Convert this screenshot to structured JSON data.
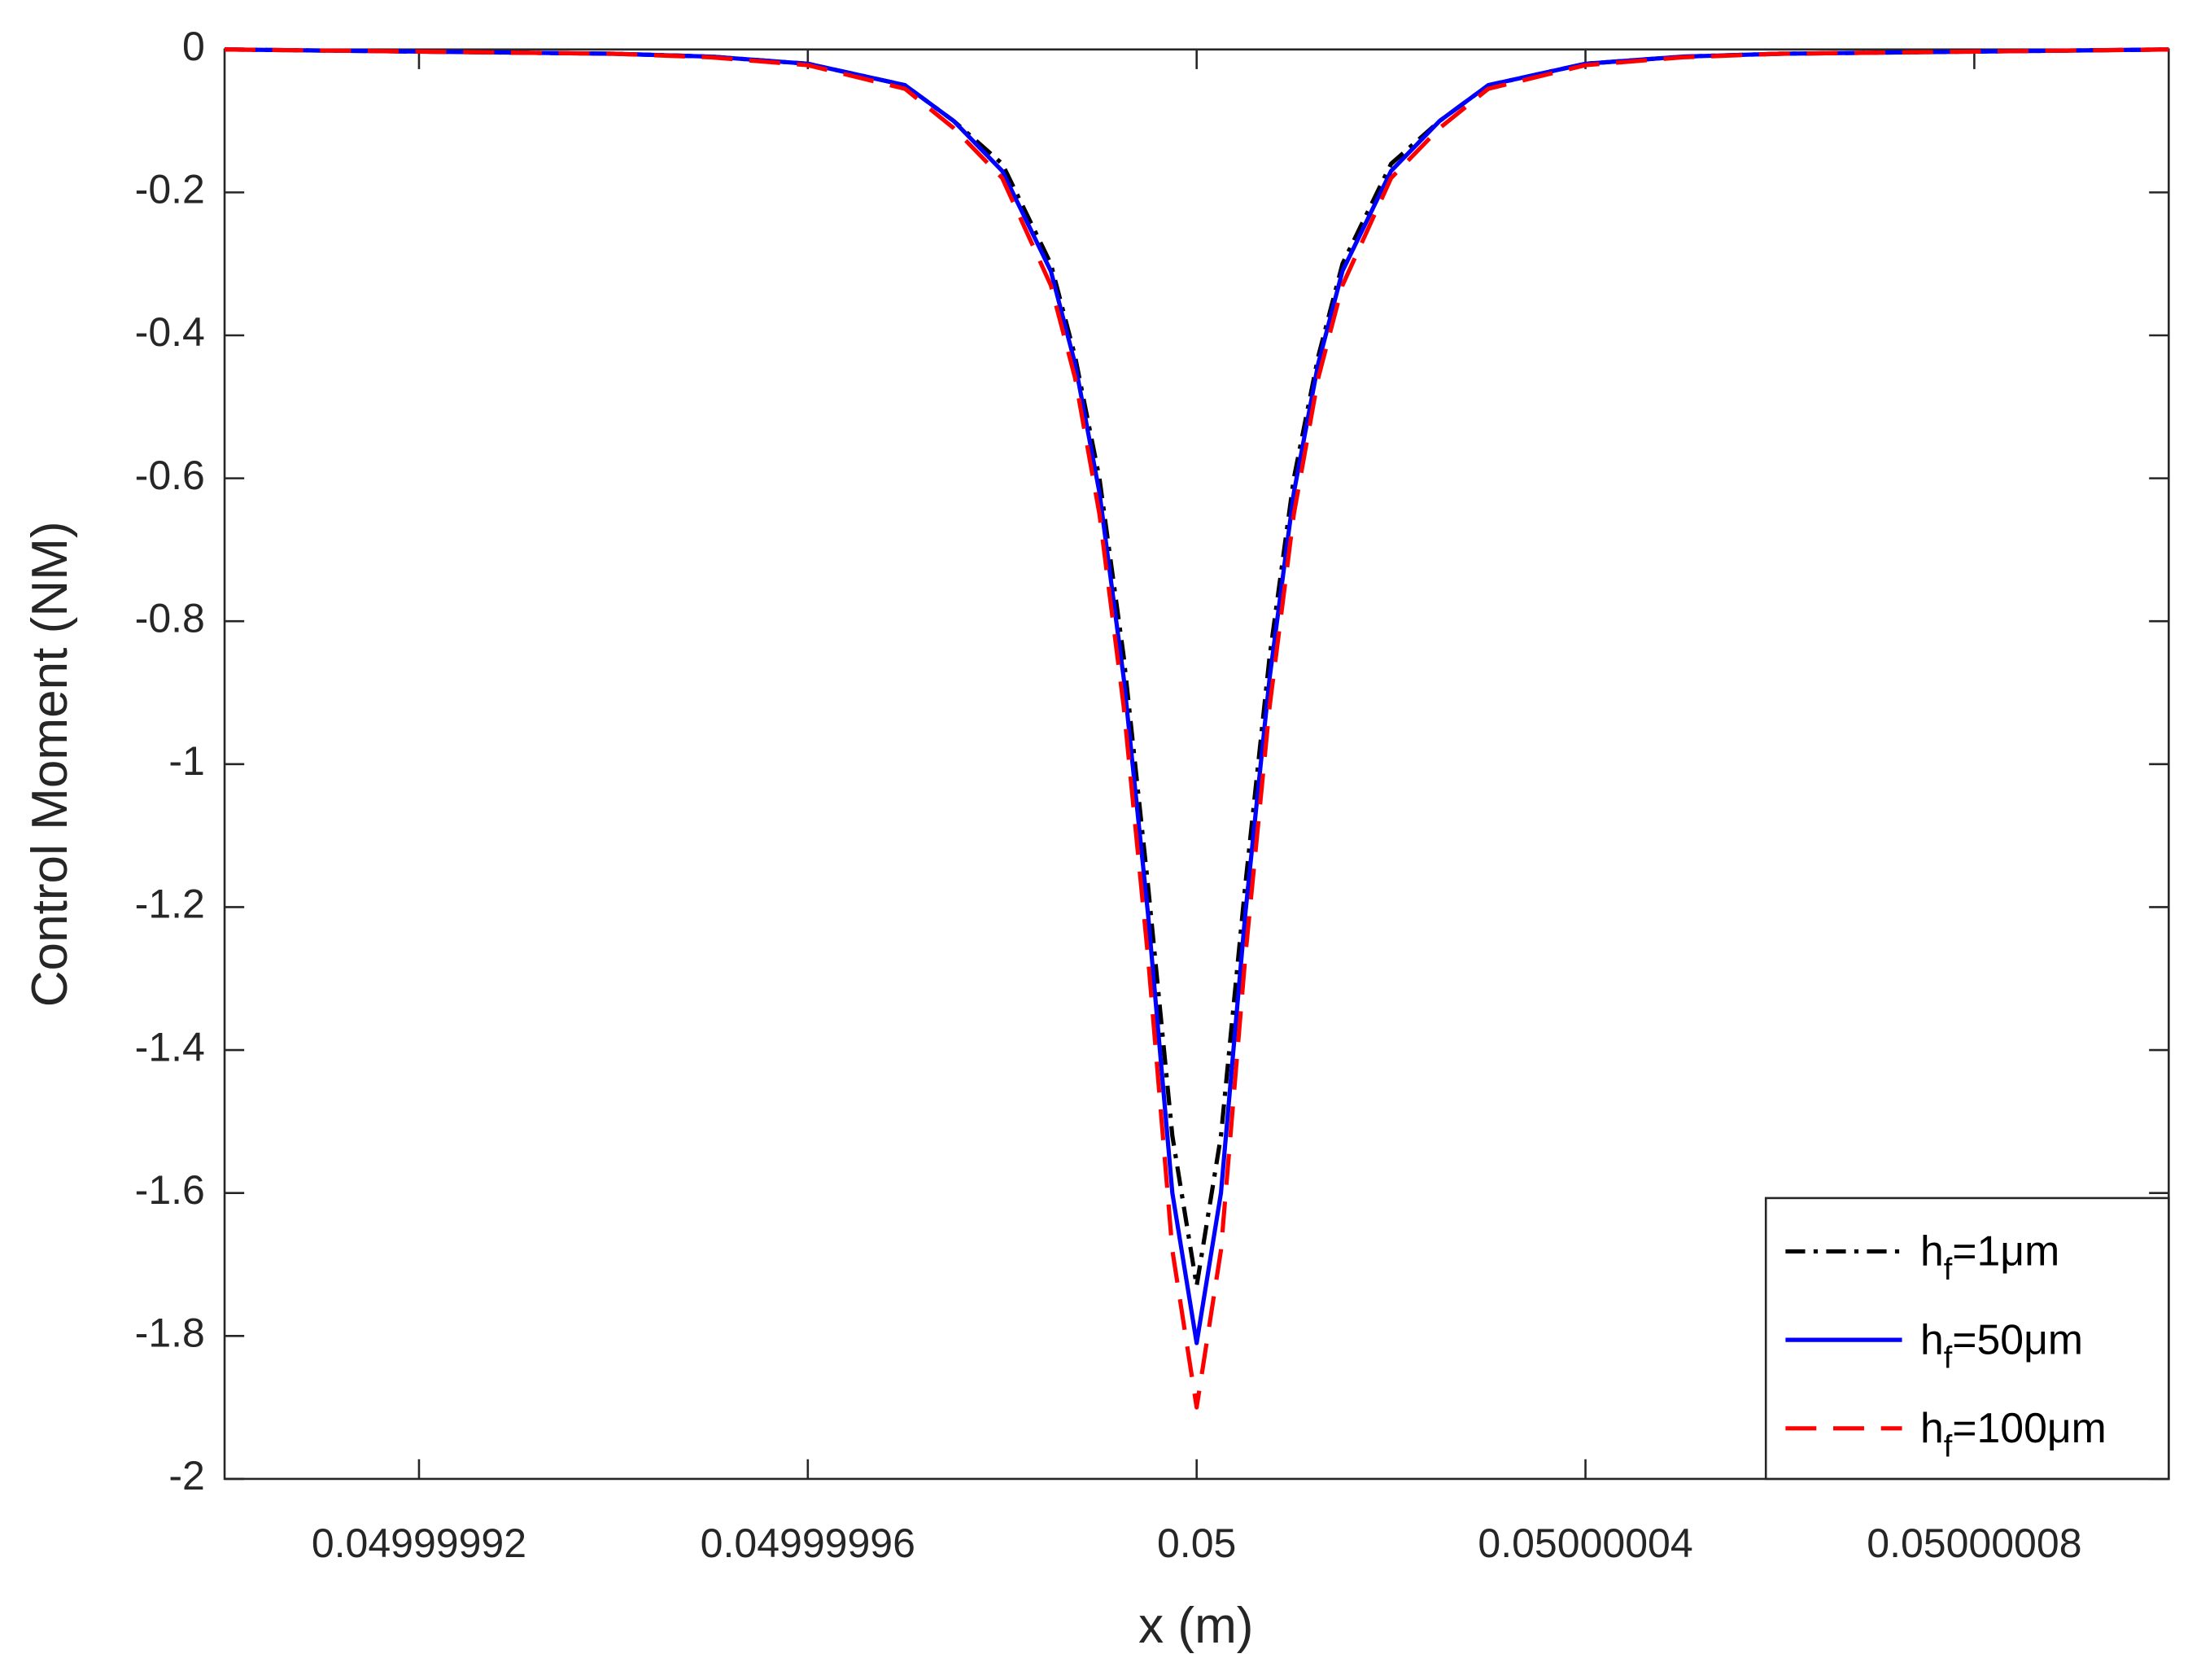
{
  "chart_data": {
    "type": "line",
    "xlabel": "x (m)",
    "ylabel": "Control Moment (NM)",
    "x": [
      0.0499999,
      0.04999992,
      0.04999994,
      0.04999995,
      0.04999996,
      0.04999997,
      0.049999975,
      0.04999998,
      0.049999985,
      0.0499999875,
      0.04999999,
      0.0499999925,
      0.049999995,
      0.0499999975,
      0.05,
      0.0500000025,
      0.050000005,
      0.0500000075,
      0.05000001,
      0.0500000125,
      0.050000015,
      0.05000002,
      0.050000025,
      0.05000003,
      0.05000004,
      0.05000005,
      0.05000006,
      0.05000008,
      0.0500001
    ],
    "series": [
      {
        "name": "hf=1μm",
        "color": "#000000",
        "style": "dash-dot",
        "values": [
          0,
          -0.003,
          -0.006,
          -0.01,
          -0.02,
          -0.05,
          -0.1,
          -0.16,
          -0.3,
          -0.43,
          -0.6,
          -0.85,
          -1.17,
          -1.52,
          -1.73,
          -1.52,
          -1.17,
          -0.85,
          -0.6,
          -0.43,
          -0.3,
          -0.16,
          -0.1,
          -0.05,
          -0.02,
          -0.01,
          -0.006,
          -0.003,
          0
        ]
      },
      {
        "name": "hf=50μm",
        "color": "#0000ff",
        "style": "solid",
        "values": [
          0,
          -0.003,
          -0.006,
          -0.01,
          -0.02,
          -0.05,
          -0.1,
          -0.17,
          -0.31,
          -0.44,
          -0.62,
          -0.88,
          -1.21,
          -1.6,
          -1.81,
          -1.6,
          -1.21,
          -0.88,
          -0.62,
          -0.44,
          -0.31,
          -0.17,
          -0.1,
          -0.05,
          -0.02,
          -0.01,
          -0.006,
          -0.003,
          0
        ]
      },
      {
        "name": "hf=100μm",
        "color": "#ff0000",
        "style": "dashed",
        "values": [
          0,
          -0.003,
          -0.006,
          -0.011,
          -0.022,
          -0.055,
          -0.11,
          -0.18,
          -0.33,
          -0.46,
          -0.65,
          -0.92,
          -1.27,
          -1.68,
          -1.9,
          -1.68,
          -1.27,
          -0.92,
          -0.65,
          -0.46,
          -0.33,
          -0.18,
          -0.11,
          -0.055,
          -0.022,
          -0.011,
          -0.006,
          -0.003,
          0
        ]
      }
    ],
    "xlim": [
      0.0499999,
      0.0500001
    ],
    "xticks": [
      0.04999992,
      0.04999996,
      0.05,
      0.05000004,
      0.05000008
    ],
    "ylim": [
      -2,
      0
    ],
    "yticks": [
      0,
      -0.2,
      -0.4,
      -0.6,
      -0.8,
      -1,
      -1.2,
      -1.4,
      -1.6,
      -1.8,
      -2
    ],
    "grid": false,
    "legend": "lower right"
  }
}
